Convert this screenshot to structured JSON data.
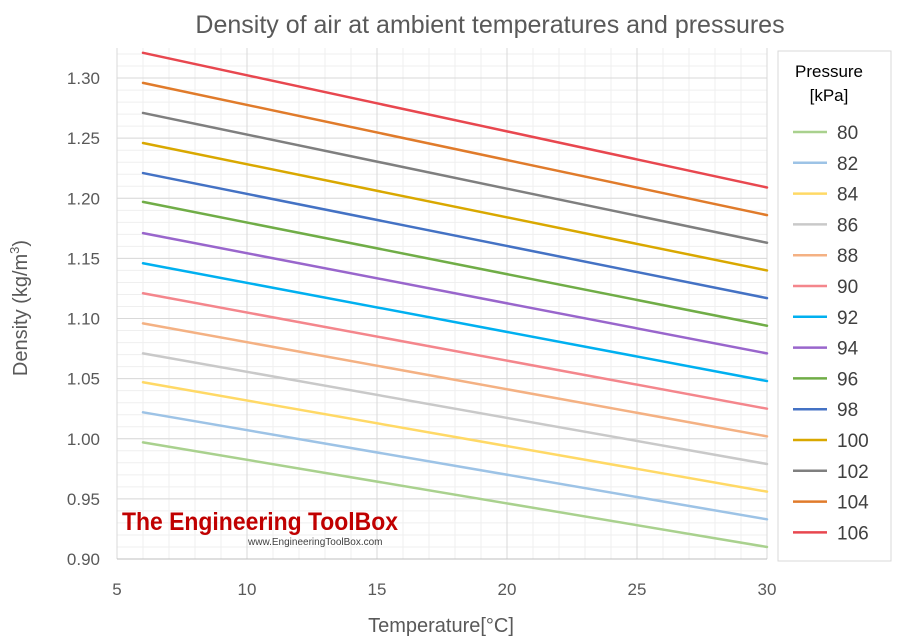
{
  "chart_data": {
    "type": "line",
    "title": "Density of air at ambient temperatures and pressures",
    "xlabel": "Temperature[°C]",
    "ylabel": "Density (kg/m",
    "ylabel_sup": "3",
    "ylabel_end": ")",
    "xlim": [
      5,
      30
    ],
    "ylim": [
      0.9,
      1.325
    ],
    "x_ticks": [
      "5",
      "10",
      "15",
      "20",
      "25",
      "30"
    ],
    "y_ticks": [
      "0.90",
      "0.95",
      "1.00",
      "1.05",
      "1.10",
      "1.15",
      "1.20",
      "1.25",
      "1.30"
    ],
    "grid": true,
    "legend_position": "right",
    "legend_title_line1": "Pressure",
    "legend_title_line2": "[kPa]",
    "x": [
      6,
      30
    ],
    "series": [
      {
        "name": "80",
        "color": "#a9d18e",
        "values": [
          0.997,
          0.91
        ]
      },
      {
        "name": "82",
        "color": "#9dc3e6",
        "values": [
          1.022,
          0.933
        ]
      },
      {
        "name": "84",
        "color": "#ffd966",
        "values": [
          1.047,
          0.956
        ]
      },
      {
        "name": "86",
        "color": "#c9c9c9",
        "values": [
          1.071,
          0.979
        ]
      },
      {
        "name": "88",
        "color": "#f4b183",
        "values": [
          1.096,
          1.002
        ]
      },
      {
        "name": "90",
        "color": "#f4868c",
        "values": [
          1.121,
          1.025
        ]
      },
      {
        "name": "92",
        "color": "#00b0f0",
        "values": [
          1.146,
          1.048
        ]
      },
      {
        "name": "94",
        "color": "#9966cc",
        "values": [
          1.171,
          1.071
        ]
      },
      {
        "name": "96",
        "color": "#70ad47",
        "values": [
          1.197,
          1.094
        ]
      },
      {
        "name": "98",
        "color": "#4472c4",
        "values": [
          1.221,
          1.117
        ]
      },
      {
        "name": "100",
        "color": "#d9a800",
        "values": [
          1.246,
          1.14
        ]
      },
      {
        "name": "102",
        "color": "#7f7f7f",
        "values": [
          1.271,
          1.163
        ]
      },
      {
        "name": "104",
        "color": "#e07b2b",
        "values": [
          1.296,
          1.186
        ]
      },
      {
        "name": "106",
        "color": "#e8474f",
        "values": [
          1.321,
          1.209
        ]
      }
    ]
  },
  "watermark": {
    "brand": "The Engineering ToolBox",
    "url": "www.EngineeringToolBox.com"
  }
}
